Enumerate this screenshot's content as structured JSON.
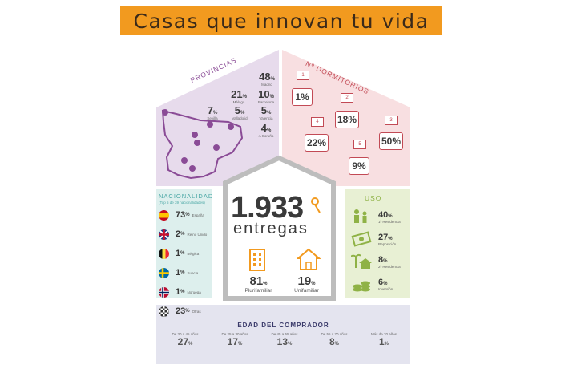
{
  "title": "Casas que innovan tu vida",
  "total": {
    "value": "1.933",
    "label": "entregas"
  },
  "tipo": [
    {
      "pct": "81",
      "label": "Plurifamiliar"
    },
    {
      "pct": "19",
      "label": "Unifamiliar"
    }
  ],
  "provincias": {
    "title": "PROVINCIAS",
    "items": [
      {
        "pct": "48",
        "name": "Madrid"
      },
      {
        "pct": "21",
        "name": "Málaga"
      },
      {
        "pct": "10",
        "name": "Barcelona"
      },
      {
        "pct": "7",
        "name": "Sevilla"
      },
      {
        "pct": "5",
        "name": "Valladolid"
      },
      {
        "pct": "5",
        "name": "Valencia"
      },
      {
        "pct": "4",
        "name": "A Coruña"
      }
    ]
  },
  "dormitorios": {
    "title": "Nº DORMITORIOS",
    "items": [
      {
        "n": "1",
        "pct": "1%"
      },
      {
        "n": "2",
        "pct": "18%"
      },
      {
        "n": "3",
        "pct": "50%"
      },
      {
        "n": "4",
        "pct": "22%"
      },
      {
        "n": "5",
        "pct": "9%"
      }
    ]
  },
  "nacionalidad": {
    "title": "NACIONALIDAD",
    "subtitle": "(Top 5 de 39 nacionalidades)",
    "items": [
      {
        "pct": "73",
        "name": "España"
      },
      {
        "pct": "2",
        "name": "Reino Unido"
      },
      {
        "pct": "1",
        "name": "Bélgica"
      },
      {
        "pct": "1",
        "name": "Suecia"
      },
      {
        "pct": "1",
        "name": "Noruega"
      },
      {
        "pct": "23",
        "name": "Otras"
      }
    ]
  },
  "uso": {
    "title": "USO",
    "items": [
      {
        "pct": "40",
        "name": "1ª Residencia"
      },
      {
        "pct": "27",
        "name": "Reposición"
      },
      {
        "pct": "8",
        "name": "2ª Residencia"
      },
      {
        "pct": "6",
        "name": "Inversión"
      }
    ]
  },
  "edad": {
    "title": "EDAD DEL COMPRADOR",
    "items": [
      {
        "range": "De 30 a 45 años",
        "pct": "27"
      },
      {
        "range": "De 25 a 30 años",
        "pct": "17"
      },
      {
        "range": "De 45 a 55 años",
        "pct": "13"
      },
      {
        "range": "De 55 a 70 años",
        "pct": "8"
      },
      {
        "range": "Más de 70 años",
        "pct": "1"
      }
    ]
  },
  "chart_data": {
    "type": "table",
    "total_entregas": 1933,
    "tipo": {
      "categories": [
        "Plurifamiliar",
        "Unifamiliar"
      ],
      "values": [
        81,
        19
      ]
    },
    "provincias": {
      "categories": [
        "Madrid",
        "Málaga",
        "Barcelona",
        "Sevilla",
        "Valladolid",
        "Valencia",
        "A Coruña"
      ],
      "values": [
        48,
        21,
        10,
        7,
        5,
        5,
        4
      ]
    },
    "dormitorios": {
      "categories": [
        "1",
        "2",
        "3",
        "4",
        "5"
      ],
      "values": [
        1,
        18,
        50,
        22,
        9
      ]
    },
    "nacionalidad": {
      "categories": [
        "España",
        "Reino Unido",
        "Bélgica",
        "Suecia",
        "Noruega",
        "Otras"
      ],
      "values": [
        73,
        2,
        1,
        1,
        1,
        23
      ]
    },
    "uso": {
      "categories": [
        "1ª Residencia",
        "Reposición",
        "2ª Residencia",
        "Inversión"
      ],
      "values": [
        40,
        27,
        8,
        6
      ]
    },
    "edad": {
      "categories": [
        "De 30 a 45 años",
        "De 25 a 30 años",
        "De 45 a 55 años",
        "De 55 a 70 años",
        "Más de 70 años"
      ],
      "values": [
        27,
        17,
        13,
        8,
        1
      ]
    }
  },
  "colors": {
    "banner": "#f29a1f",
    "provincias": "#e7dbec",
    "dormitorios": "#f8dfe1",
    "nacionalidad": "#ddefed",
    "uso": "#e8f0d4",
    "edad": "#e4e4ef",
    "accent_orange": "#f29a1f",
    "purple": "#8a4b96",
    "red": "#c24a55",
    "teal": "#4aa7a5",
    "green": "#8fb246"
  }
}
